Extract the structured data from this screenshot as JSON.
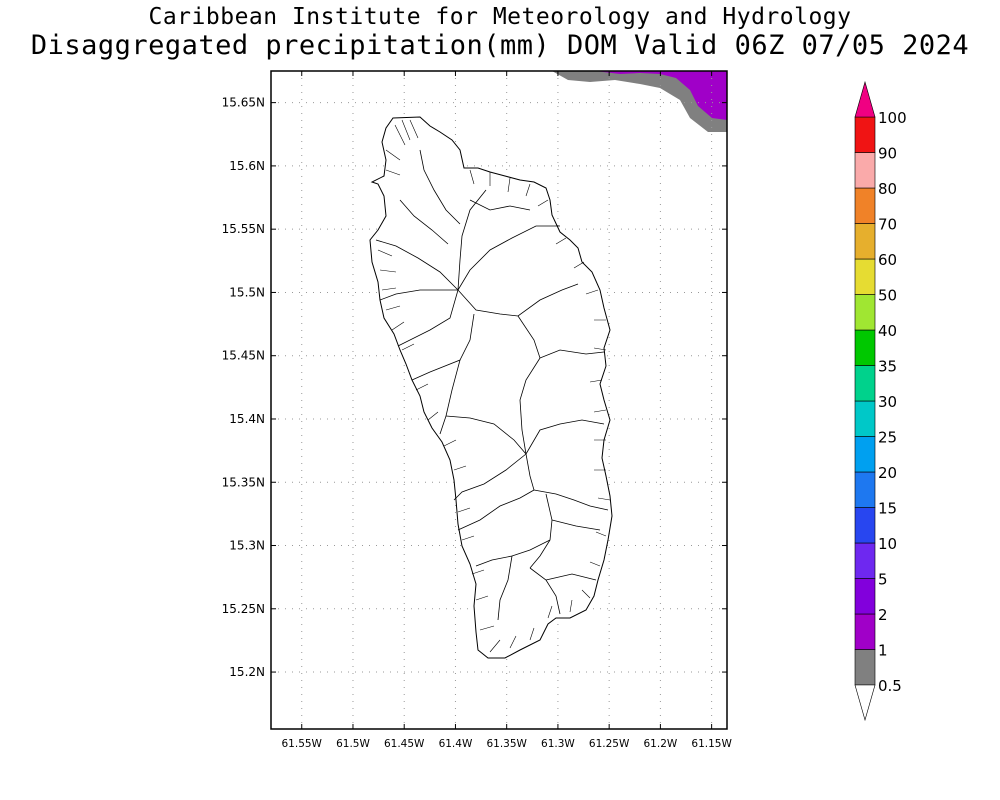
{
  "title": {
    "line1": "Caribbean Institute for Meteorology and Hydrology",
    "line2": "Disaggregated precipitation(mm) DOM Valid 06Z 07/05 2024"
  },
  "map": {
    "lat_range": [
      15.155,
      15.675
    ],
    "lon_range": [
      -61.58,
      -61.135
    ],
    "lat_ticks": [
      {
        "value": 15.65,
        "label": "15.65N"
      },
      {
        "value": 15.6,
        "label": "15.6N"
      },
      {
        "value": 15.55,
        "label": "15.55N"
      },
      {
        "value": 15.5,
        "label": "15.5N"
      },
      {
        "value": 15.45,
        "label": "15.45N"
      },
      {
        "value": 15.4,
        "label": "15.4N"
      },
      {
        "value": 15.35,
        "label": "15.35N"
      },
      {
        "value": 15.3,
        "label": "15.3N"
      },
      {
        "value": 15.25,
        "label": "15.25N"
      },
      {
        "value": 15.2,
        "label": "15.2N"
      }
    ],
    "lon_ticks": [
      {
        "value": -61.55,
        "label": "61.55W"
      },
      {
        "value": -61.5,
        "label": "61.5W"
      },
      {
        "value": -61.45,
        "label": "61.45W"
      },
      {
        "value": -61.4,
        "label": "61.4W"
      },
      {
        "value": -61.35,
        "label": "61.35W"
      },
      {
        "value": -61.3,
        "label": "61.3W"
      },
      {
        "value": -61.25,
        "label": "61.25W"
      },
      {
        "value": -61.2,
        "label": "61.2W"
      },
      {
        "value": -61.15,
        "label": "61.15W"
      }
    ],
    "grid": true
  },
  "colorbar": {
    "levels": [
      {
        "label": "0.5",
        "color": "#808080"
      },
      {
        "label": "1",
        "color": "#a000c8"
      },
      {
        "label": "2",
        "color": "#8200dc"
      },
      {
        "label": "5",
        "color": "#6e28f0"
      },
      {
        "label": "10",
        "color": "#2846f0"
      },
      {
        "label": "15",
        "color": "#1e78f0"
      },
      {
        "label": "20",
        "color": "#00a0f0"
      },
      {
        "label": "25",
        "color": "#00c8c8"
      },
      {
        "label": "30",
        "color": "#00d28c"
      },
      {
        "label": "35",
        "color": "#00c800"
      },
      {
        "label": "40",
        "color": "#a0e632"
      },
      {
        "label": "50",
        "color": "#e6dc32"
      },
      {
        "label": "60",
        "color": "#e6af2d"
      },
      {
        "label": "70",
        "color": "#f08228"
      },
      {
        "label": "80",
        "color": "#faaaaa"
      },
      {
        "label": "90",
        "color": "#f01414"
      },
      {
        "label": "100",
        "color": "#f04646"
      }
    ],
    "top_arrow_color": "#f00082",
    "bottom_arrow_color": "#ffffff"
  }
}
